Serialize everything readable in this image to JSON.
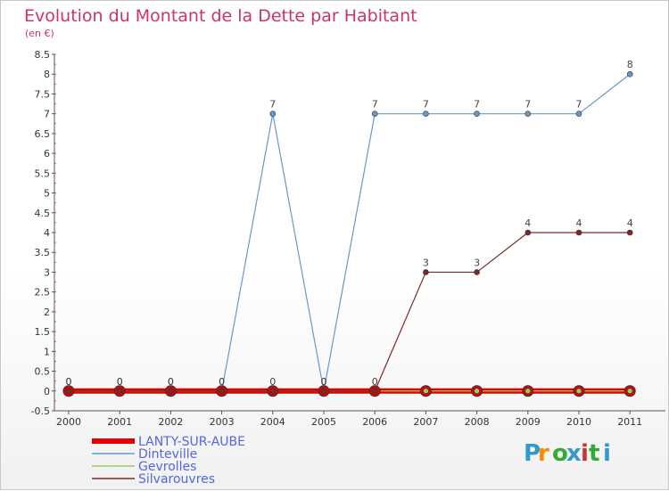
{
  "chart_data": {
    "type": "line",
    "title": "Evolution du Montant de la Dette par Habitant",
    "subtitle": "(en €)",
    "xlabel": "",
    "ylabel": "",
    "x": [
      "2000",
      "2001",
      "2002",
      "2003",
      "2004",
      "2005",
      "2006",
      "2007",
      "2008",
      "2009",
      "2010",
      "2011"
    ],
    "ylim": [
      -0.5,
      8.5
    ],
    "yticks": [
      "-0.5",
      "0",
      "0.5",
      "1",
      "1.5",
      "2",
      "2.5",
      "3",
      "3.5",
      "4",
      "4.5",
      "5",
      "5.5",
      "6",
      "6.5",
      "7",
      "7.5",
      "8",
      "8.5"
    ],
    "grid": false,
    "legend_position": "bottom-left",
    "series": [
      {
        "name": "LANTY-SUR-AUBE",
        "color": "#e00000",
        "values": [
          0,
          0,
          0,
          0,
          0,
          0,
          0,
          0,
          0,
          0,
          0,
          0
        ]
      },
      {
        "name": "Dinteville",
        "color": "#6699cc",
        "values": [
          0,
          0,
          0,
          0,
          7,
          0,
          7,
          7,
          7,
          7,
          7,
          8
        ]
      },
      {
        "name": "Gevrolles",
        "color": "#99cc66",
        "values": [
          0,
          0,
          0,
          0,
          0,
          0,
          0,
          0,
          0,
          0,
          0,
          0
        ]
      },
      {
        "name": "Silvarouvres",
        "color": "#7a2a2a",
        "values": [
          0,
          0,
          0,
          0,
          0,
          0,
          0,
          3,
          3,
          4,
          4,
          4
        ]
      }
    ],
    "point_labels": [
      [
        "0",
        "0",
        "0",
        "0",
        "7",
        "0",
        "7",
        "7",
        "7",
        "7",
        "7",
        "8"
      ],
      [
        "0",
        "0",
        "0",
        "0",
        "0",
        "0",
        "0",
        "3",
        "3",
        "4",
        "4",
        "4"
      ]
    ]
  },
  "logo": {
    "text": "Proxiti"
  }
}
